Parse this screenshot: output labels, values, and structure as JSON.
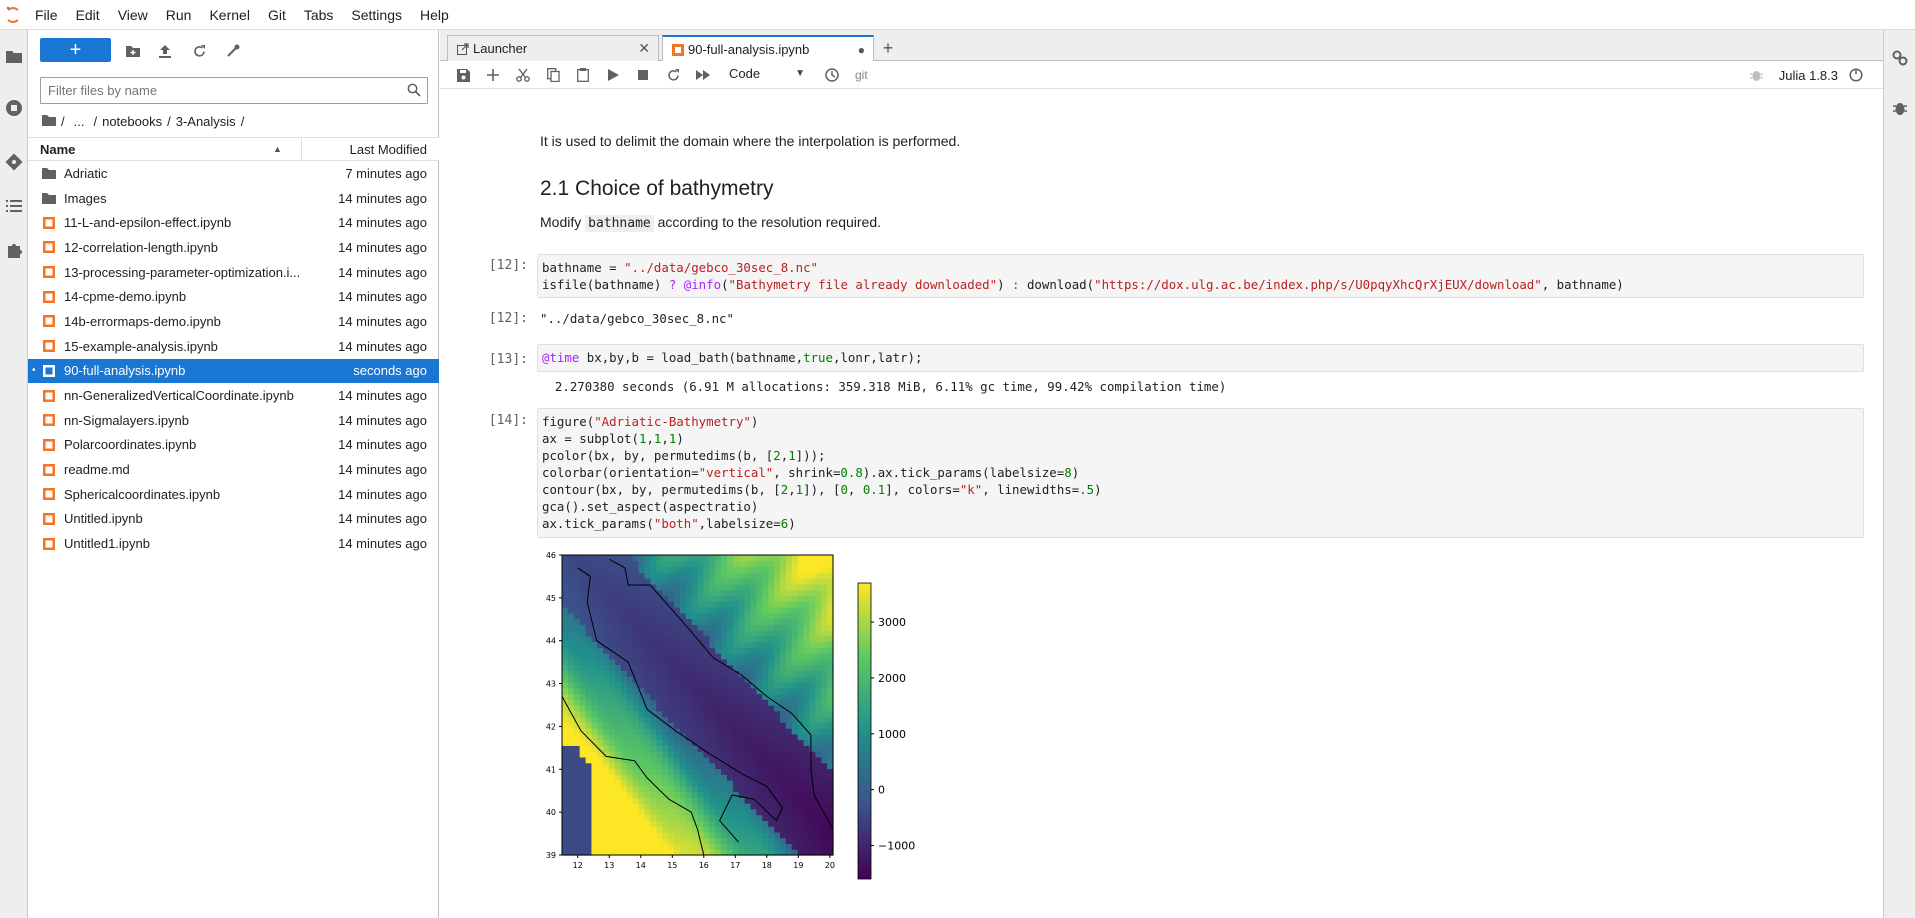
{
  "menu": {
    "items": [
      "File",
      "Edit",
      "View",
      "Run",
      "Kernel",
      "Git",
      "Tabs",
      "Settings",
      "Help"
    ]
  },
  "file_browser": {
    "filter_placeholder": "Filter files by name",
    "breadcrumbs": [
      "/",
      "...",
      "/",
      "notebooks",
      "/",
      "3-Analysis",
      "/"
    ],
    "header_name": "Name",
    "header_modified": "Last Modified",
    "files": [
      {
        "name": "Adriatic",
        "modified": "7 minutes ago",
        "type": "folder"
      },
      {
        "name": "Images",
        "modified": "14 minutes ago",
        "type": "folder"
      },
      {
        "name": "11-L-and-epsilon-effect.ipynb",
        "modified": "14 minutes ago",
        "type": "notebook"
      },
      {
        "name": "12-correlation-length.ipynb",
        "modified": "14 minutes ago",
        "type": "notebook"
      },
      {
        "name": "13-processing-parameter-optimization.i...",
        "modified": "14 minutes ago",
        "type": "notebook"
      },
      {
        "name": "14-cpme-demo.ipynb",
        "modified": "14 minutes ago",
        "type": "notebook"
      },
      {
        "name": "14b-errormaps-demo.ipynb",
        "modified": "14 minutes ago",
        "type": "notebook"
      },
      {
        "name": "15-example-analysis.ipynb",
        "modified": "14 minutes ago",
        "type": "notebook"
      },
      {
        "name": "90-full-analysis.ipynb",
        "modified": "seconds ago",
        "type": "notebook",
        "selected": true
      },
      {
        "name": "nn-GeneralizedVerticalCoordinate.ipynb",
        "modified": "14 minutes ago",
        "type": "notebook"
      },
      {
        "name": "nn-Sigmalayers.ipynb",
        "modified": "14 minutes ago",
        "type": "notebook"
      },
      {
        "name": "Polarcoordinates.ipynb",
        "modified": "14 minutes ago",
        "type": "notebook"
      },
      {
        "name": "readme.md",
        "modified": "14 minutes ago",
        "type": "markdown"
      },
      {
        "name": "Sphericalcoordinates.ipynb",
        "modified": "14 minutes ago",
        "type": "notebook"
      },
      {
        "name": "Untitled.ipynb",
        "modified": "14 minutes ago",
        "type": "notebook"
      },
      {
        "name": "Untitled1.ipynb",
        "modified": "14 minutes ago",
        "type": "notebook"
      }
    ]
  },
  "tabs": [
    {
      "label": "Launcher",
      "active": false
    },
    {
      "label": "90-full-analysis.ipynb",
      "active": true
    }
  ],
  "notebook_toolbar": {
    "cell_type": "Code",
    "git_label": "git",
    "kernel": "Julia 1.8.3"
  },
  "notebook": {
    "md_intro": "It is used to delimit the domain where the interpolation is performed.",
    "heading": "2.1 Choice of bathymetry",
    "md_modify_pre": "Modify ",
    "md_modify_code": "bathname",
    "md_modify_post": " according to the resolution required.",
    "cell12_prompt": "[12]:",
    "cell12_out_prompt": "[12]:",
    "cell12_output": "\"../data/gebco_30sec_8.nc\"",
    "cell13_prompt": "[13]:",
    "cell13_output": "  2.270380 seconds (6.91 M allocations: 359.318 MiB, 6.11% gc time, 99.42% compilation time)",
    "cell14_prompt": "[14]:"
  },
  "chart_data": {
    "type": "heatmap",
    "title": "Adriatic-Bathymetry",
    "x_ticks": [
      "12",
      "13",
      "14",
      "15",
      "16",
      "17",
      "18",
      "19",
      "20"
    ],
    "y_ticks": [
      "39",
      "40",
      "41",
      "42",
      "43",
      "44",
      "45",
      "46"
    ],
    "xlim": [
      11.5,
      20.1
    ],
    "ylim": [
      39,
      46
    ],
    "colorbar_ticks": [
      "3000",
      "2000",
      "1000",
      "0",
      "−1000"
    ],
    "colorbar_range": [
      -1600,
      3700
    ],
    "colormap": "viridis",
    "contour_levels": [
      0,
      0.1
    ]
  },
  "colors": {
    "accent": "#1976d2",
    "notebook_icon": "#f37626"
  }
}
